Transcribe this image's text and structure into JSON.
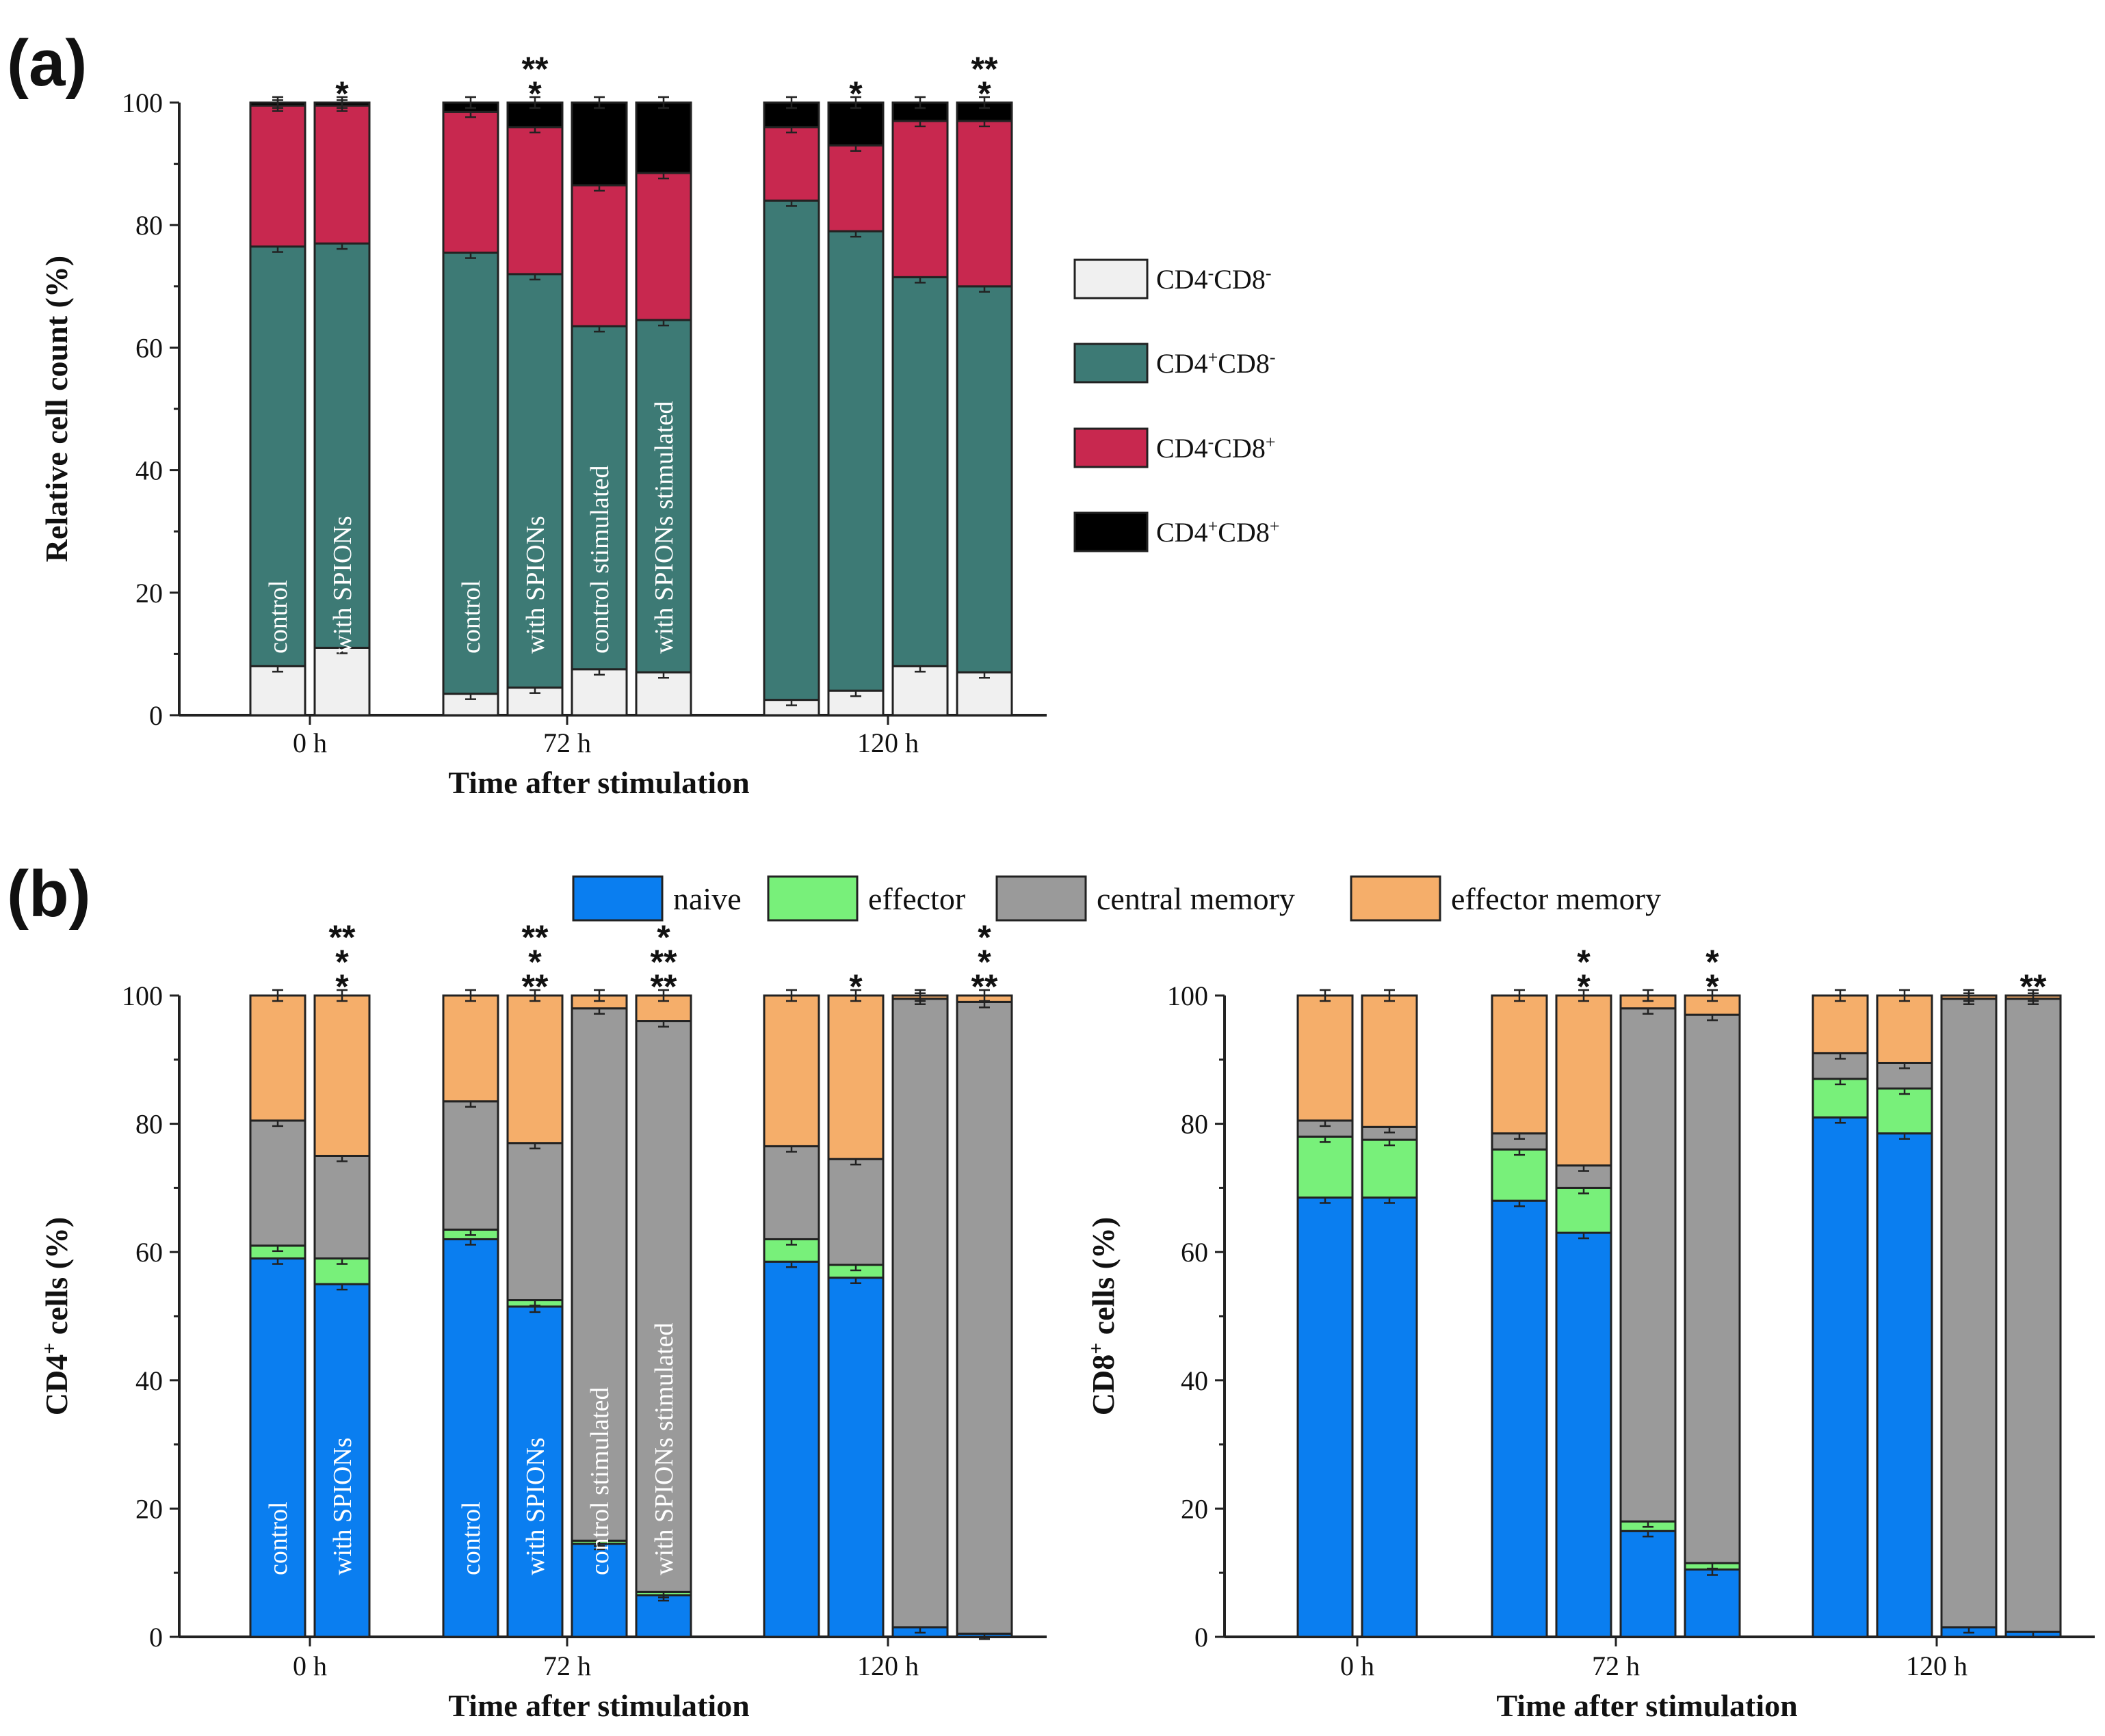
{
  "panels": {
    "a": "(a)",
    "b": "(b)"
  },
  "chart_data": [
    {
      "type": "bar",
      "stacked": true,
      "id": "a",
      "title": "",
      "xlabel": "Time after stimulation",
      "ylabel": "Relative cell count (%)",
      "ylim": [
        0,
        100
      ],
      "yticks": [
        0,
        20,
        40,
        60,
        80,
        100
      ],
      "groups": [
        "0 h",
        "72 h",
        "120 h"
      ],
      "legend": [
        {
          "name": "CD4-CD8-",
          "base": "CD4",
          "s1": "-",
          "mid": "CD8",
          "s2": "-",
          "color": "#f0f0f0"
        },
        {
          "name": "CD4+CD8-",
          "base": "CD4",
          "s1": "+",
          "mid": "CD8",
          "s2": "-",
          "color": "#3d7a75"
        },
        {
          "name": "CD4-CD8+",
          "base": "CD4",
          "s1": "-",
          "mid": "CD8",
          "s2": "+",
          "color": "#c8284f"
        },
        {
          "name": "CD4+CD8+",
          "base": "CD4",
          "s1": "+",
          "mid": "CD8",
          "s2": "+",
          "color": "#000000"
        }
      ],
      "bars": [
        {
          "group": "0 h",
          "label": "control",
          "values": [
            8,
            68.5,
            23,
            0.5
          ]
        },
        {
          "group": "0 h",
          "label": "with SPIONs",
          "values": [
            11,
            66,
            22.5,
            0.5
          ],
          "stars": [
            {
              "text": "*",
              "color": "#3d7a75"
            }
          ]
        },
        {
          "group": "72 h",
          "label": "control",
          "values": [
            3.5,
            72,
            23,
            1.5
          ]
        },
        {
          "group": "72 h",
          "label": "with SPIONs",
          "values": [
            4.5,
            67.5,
            24,
            4
          ],
          "stars": [
            {
              "text": "*",
              "color": "#3d7a75"
            },
            {
              "text": "**",
              "color": "#c8284f"
            }
          ]
        },
        {
          "group": "72 h",
          "label": "control stimulated",
          "values": [
            7.5,
            56,
            23,
            13.5
          ]
        },
        {
          "group": "72 h",
          "label": "with SPIONs stimulated",
          "values": [
            7,
            57.5,
            24,
            11.5
          ]
        },
        {
          "group": "120 h",
          "label": "",
          "values": [
            2.5,
            81.5,
            12,
            4
          ]
        },
        {
          "group": "120 h",
          "label": "",
          "values": [
            4,
            75,
            14,
            7
          ],
          "stars": [
            {
              "text": "*",
              "color": "#3d7a75"
            }
          ]
        },
        {
          "group": "120 h",
          "label": "",
          "values": [
            8,
            63.5,
            25.5,
            3
          ]
        },
        {
          "group": "120 h",
          "label": "",
          "values": [
            7,
            63,
            27,
            3
          ],
          "stars": [
            {
              "text": "*",
              "color": "#3d7a75"
            },
            {
              "text": "**",
              "color": "#c8284f"
            }
          ]
        }
      ]
    },
    {
      "type": "bar",
      "stacked": true,
      "id": "b-cd4",
      "title": "",
      "xlabel": "Time after stimulation",
      "ylabel": "CD4+ cells (%)",
      "ylabel_base": "CD4",
      "ylabel_sup": "+",
      "ylabel_rest": " cells (%)",
      "ylim": [
        0,
        100
      ],
      "yticks": [
        0,
        20,
        40,
        60,
        80,
        100
      ],
      "groups": [
        "0 h",
        "72 h",
        "120 h"
      ],
      "legend": [
        {
          "name": "naive",
          "color": "#0a7ef0"
        },
        {
          "name": "effector",
          "color": "#78f07a"
        },
        {
          "name": "central memory",
          "color": "#9a9a9a"
        },
        {
          "name": "effector memory",
          "color": "#f5ae6a"
        }
      ],
      "bars": [
        {
          "group": "0 h",
          "label": "control",
          "values": [
            59,
            2,
            19.5,
            19.5
          ]
        },
        {
          "group": "0 h",
          "label": "with SPIONs",
          "values": [
            55,
            4,
            16,
            25
          ],
          "stars": [
            {
              "text": "*",
              "color": "#0a7ef0"
            },
            {
              "text": "*",
              "color": "#78f07a"
            },
            {
              "text": "**",
              "color": "#f5ae6a"
            }
          ]
        },
        {
          "group": "72 h",
          "label": "control",
          "values": [
            62,
            1.5,
            20,
            16.5
          ]
        },
        {
          "group": "72 h",
          "label": "with SPIONs",
          "values": [
            51.5,
            1,
            24.5,
            23
          ],
          "stars": [
            {
              "text": "**",
              "color": "#0a7ef0"
            },
            {
              "text": "*",
              "color": "#9a9a9a"
            },
            {
              "text": "**",
              "color": "#f5ae6a"
            }
          ]
        },
        {
          "group": "72 h",
          "label": "control stimulated",
          "values": [
            14.5,
            0.5,
            83,
            2
          ]
        },
        {
          "group": "72 h",
          "label": "with SPIONs stimulated",
          "values": [
            6.5,
            0.5,
            89,
            4
          ],
          "stars": [
            {
              "text": "**",
              "color": "#0a7ef0"
            },
            {
              "text": "**",
              "color": "#9a9a9a"
            },
            {
              "text": "*",
              "color": "#f5ae6a"
            }
          ]
        },
        {
          "group": "120 h",
          "label": "",
          "values": [
            58.5,
            3.5,
            14.5,
            23.5
          ]
        },
        {
          "group": "120 h",
          "label": "",
          "values": [
            56,
            2,
            16.5,
            25.5
          ],
          "stars": [
            {
              "text": "*",
              "color": "#0a7ef0"
            }
          ]
        },
        {
          "group": "120 h",
          "label": "",
          "values": [
            1.5,
            0,
            98,
            0.5
          ]
        },
        {
          "group": "120 h",
          "label": "",
          "values": [
            0.5,
            0,
            98.5,
            1
          ],
          "stars": [
            {
              "text": "**",
              "color": "#0a7ef0"
            },
            {
              "text": "*",
              "color": "#9a9a9a"
            },
            {
              "text": "*",
              "color": "#f5ae6a"
            }
          ]
        }
      ]
    },
    {
      "type": "bar",
      "stacked": true,
      "id": "b-cd8",
      "title": "",
      "xlabel": "Time after stimulation",
      "ylabel": "CD8+ cells (%)",
      "ylabel_base": "CD8",
      "ylabel_sup": "+",
      "ylabel_rest": " cells (%)",
      "ylim": [
        0,
        100
      ],
      "yticks": [
        0,
        20,
        40,
        60,
        80,
        100
      ],
      "groups": [
        "0 h",
        "72 h",
        "120 h"
      ],
      "legend": [
        {
          "name": "naive",
          "color": "#0a7ef0"
        },
        {
          "name": "effector",
          "color": "#78f07a"
        },
        {
          "name": "central memory",
          "color": "#9a9a9a"
        },
        {
          "name": "effector memory",
          "color": "#f5ae6a"
        }
      ],
      "bars": [
        {
          "group": "0 h",
          "label": "",
          "values": [
            68.5,
            9.5,
            2.5,
            19.5
          ]
        },
        {
          "group": "0 h",
          "label": "",
          "values": [
            68.5,
            9,
            2,
            20.5
          ]
        },
        {
          "group": "72 h",
          "label": "",
          "values": [
            68,
            8,
            2.5,
            21.5
          ]
        },
        {
          "group": "72 h",
          "label": "",
          "values": [
            63,
            7,
            3.5,
            26.5
          ],
          "stars": [
            {
              "text": "*",
              "color": "#0a7ef0"
            },
            {
              "text": "*",
              "color": "#f5ae6a"
            }
          ]
        },
        {
          "group": "72 h",
          "label": "",
          "values": [
            16.5,
            1.5,
            80,
            2
          ]
        },
        {
          "group": "72 h",
          "label": "",
          "values": [
            10.5,
            1,
            85.5,
            3
          ],
          "stars": [
            {
              "text": "*",
              "color": "#0a7ef0"
            },
            {
              "text": "*",
              "color": "#9a9a9a"
            }
          ]
        },
        {
          "group": "120 h",
          "label": "",
          "values": [
            81,
            6,
            4,
            9
          ]
        },
        {
          "group": "120 h",
          "label": "",
          "values": [
            78.5,
            7,
            4,
            10.5
          ]
        },
        {
          "group": "120 h",
          "label": "",
          "values": [
            1.5,
            0,
            98,
            0.5
          ]
        },
        {
          "group": "120 h",
          "label": "",
          "values": [
            0.8,
            0,
            98.7,
            0.5
          ],
          "stars": [
            {
              "text": "**",
              "color": "#0a7ef0"
            }
          ]
        }
      ]
    }
  ]
}
